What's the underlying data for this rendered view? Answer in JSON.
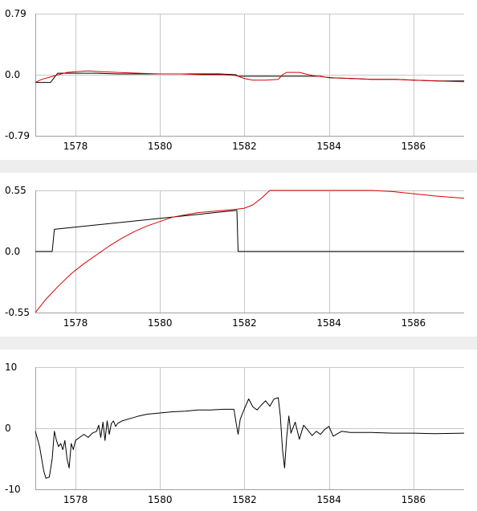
{
  "chart_data": [
    {
      "type": "line",
      "x_ticks": [
        1578,
        1580,
        1582,
        1584,
        1586
      ],
      "y_tick_labels": [
        "0.79",
        "0.0",
        "-0.79"
      ],
      "ylim": [
        -0.79,
        0.79
      ],
      "xlim": [
        1577.05,
        1587.2
      ],
      "grid": true,
      "colors": {
        "black": "#000000",
        "red": "#dd0000"
      },
      "series": [
        {
          "color": "#000000",
          "x": [
            1577.05,
            1577.4,
            1577.41,
            1577.58,
            1578.0,
            1578.5,
            1579.0,
            1579.5,
            1580.0,
            1580.5,
            1581.0,
            1581.4,
            1581.8,
            1581.85,
            1582.2,
            1582.6,
            1583.0,
            1583.5,
            1583.8,
            1584.0,
            1584.6,
            1585.0,
            1585.6,
            1586.0,
            1586.6,
            1587.2
          ],
          "y": [
            -0.1,
            -0.1,
            -0.1,
            0.02,
            0.02,
            0.02,
            0.01,
            0.01,
            0.01,
            0.01,
            0.01,
            0.01,
            0.0,
            -0.02,
            -0.02,
            -0.02,
            -0.02,
            -0.02,
            -0.02,
            -0.04,
            -0.05,
            -0.06,
            -0.06,
            -0.07,
            -0.08,
            -0.08
          ]
        },
        {
          "color": "#dd0000",
          "x": [
            1577.05,
            1577.2,
            1577.4,
            1577.6,
            1577.8,
            1578.0,
            1578.3,
            1578.6,
            1579.0,
            1579.5,
            1580.0,
            1580.5,
            1581.0,
            1581.5,
            1581.8,
            1582.0,
            1582.2,
            1582.5,
            1582.8,
            1582.9,
            1583.0,
            1583.3,
            1583.6,
            1583.9,
            1584.1,
            1584.5,
            1585.0,
            1585.5,
            1586.0,
            1586.5,
            1587.2
          ],
          "y": [
            -0.1,
            -0.06,
            -0.03,
            -0.0,
            0.03,
            0.04,
            0.05,
            0.04,
            0.03,
            0.02,
            0.01,
            0.01,
            0.0,
            0.0,
            -0.01,
            -0.05,
            -0.07,
            -0.07,
            -0.06,
            0.0,
            0.03,
            0.03,
            -0.01,
            -0.03,
            -0.04,
            -0.05,
            -0.06,
            -0.06,
            -0.07,
            -0.08,
            -0.09
          ]
        }
      ]
    },
    {
      "type": "line",
      "x_ticks": [
        1578,
        1580,
        1582,
        1584,
        1586
      ],
      "y_tick_labels": [
        "0.55",
        "0.0",
        "-0.55"
      ],
      "ylim": [
        -0.55,
        0.55
      ],
      "xlim": [
        1577.05,
        1587.2
      ],
      "grid": true,
      "series": [
        {
          "color": "#000000",
          "x": [
            1577.05,
            1577.4,
            1577.45,
            1577.5,
            1581.8,
            1581.82,
            1581.85,
            1584.0,
            1587.2
          ],
          "y": [
            0.0,
            0.0,
            0.0,
            0.2,
            0.37,
            0.37,
            0.0,
            0.0,
            0.0
          ]
        },
        {
          "color": "#dd0000",
          "x": [
            1577.05,
            1577.3,
            1577.6,
            1577.9,
            1578.2,
            1578.5,
            1578.8,
            1579.1,
            1579.4,
            1579.7,
            1580.0,
            1580.3,
            1580.6,
            1580.9,
            1581.2,
            1581.5,
            1581.8,
            1582.0,
            1582.2,
            1582.4,
            1582.6,
            1583.0,
            1583.5,
            1584.0,
            1584.5,
            1585.0,
            1585.5,
            1586.0,
            1586.5,
            1587.2
          ],
          "y": [
            -0.55,
            -0.43,
            -0.31,
            -0.2,
            -0.11,
            -0.03,
            0.05,
            0.12,
            0.18,
            0.23,
            0.27,
            0.31,
            0.33,
            0.35,
            0.36,
            0.37,
            0.38,
            0.39,
            0.42,
            0.48,
            0.55,
            0.55,
            0.55,
            0.55,
            0.55,
            0.55,
            0.54,
            0.52,
            0.5,
            0.48
          ]
        }
      ]
    },
    {
      "type": "line",
      "x_ticks": [
        1578,
        1580,
        1582,
        1584,
        1586
      ],
      "y_tick_labels": [
        "10",
        "0",
        "-10"
      ],
      "ylim": [
        -10,
        10
      ],
      "xlim": [
        1577.05,
        1587.2
      ],
      "grid": true,
      "series": [
        {
          "color": "#000000",
          "x": [
            1577.05,
            1577.15,
            1577.25,
            1577.3,
            1577.38,
            1577.45,
            1577.5,
            1577.55,
            1577.6,
            1577.65,
            1577.7,
            1577.75,
            1577.8,
            1577.85,
            1577.9,
            1577.95,
            1578.0,
            1578.1,
            1578.2,
            1578.3,
            1578.4,
            1578.5,
            1578.55,
            1578.6,
            1578.65,
            1578.7,
            1578.75,
            1578.8,
            1578.85,
            1578.9,
            1578.95,
            1579.0,
            1579.1,
            1579.3,
            1579.5,
            1579.7,
            1580.0,
            1580.3,
            1580.6,
            1580.9,
            1581.2,
            1581.5,
            1581.75,
            1581.8,
            1581.85,
            1581.9,
            1582.0,
            1582.1,
            1582.2,
            1582.3,
            1582.4,
            1582.5,
            1582.6,
            1582.7,
            1582.8,
            1582.85,
            1582.9,
            1582.95,
            1583.0,
            1583.05,
            1583.1,
            1583.2,
            1583.3,
            1583.4,
            1583.5,
            1583.6,
            1583.7,
            1583.8,
            1583.9,
            1584.0,
            1584.1,
            1584.3,
            1584.5,
            1585.0,
            1585.5,
            1586.0,
            1586.5,
            1587.2
          ],
          "y": [
            -0.5,
            -3.0,
            -7.0,
            -8.2,
            -8.0,
            -5.0,
            -0.5,
            -2.0,
            -3.0,
            -2.5,
            -3.5,
            -2.0,
            -5.0,
            -6.5,
            -2.5,
            -3.5,
            -2.0,
            -1.5,
            -1.0,
            -1.5,
            -0.8,
            -0.5,
            0.5,
            -1.5,
            1.0,
            -2.0,
            1.2,
            -1.0,
            0.8,
            1.2,
            0.3,
            0.8,
            1.2,
            1.6,
            2.0,
            2.3,
            2.5,
            2.7,
            2.8,
            3.0,
            3.0,
            3.1,
            3.1,
            1.0,
            -1.0,
            1.5,
            3.2,
            4.8,
            3.5,
            3.0,
            3.8,
            4.5,
            3.6,
            4.8,
            5.0,
            2.0,
            -3.5,
            -6.5,
            -1.5,
            2.0,
            -0.8,
            1.0,
            -1.8,
            0.5,
            -0.3,
            -1.2,
            -0.5,
            -1.0,
            -0.2,
            0.3,
            -1.3,
            -0.5,
            -0.7,
            -0.7,
            -0.8,
            -0.8,
            -0.9,
            -0.8
          ]
        }
      ]
    }
  ]
}
